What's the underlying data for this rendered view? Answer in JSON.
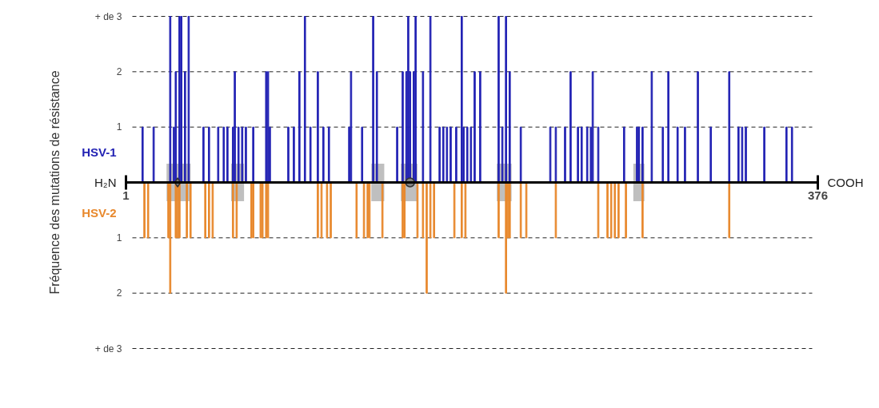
{
  "chart_data": {
    "type": "bar",
    "ylabel": "Fréquence des mutations de résistance",
    "annotations": [
      "H₂N",
      "COOH"
    ],
    "xlim": [
      1,
      376
    ],
    "xticks": [
      1,
      376
    ],
    "ylim": [
      -3,
      3
    ],
    "yticks": [
      {
        "value": 3,
        "label": "+ de 3"
      },
      {
        "value": 2,
        "label": "2"
      },
      {
        "value": 1,
        "label": "1"
      },
      {
        "value": -1,
        "label": "1"
      },
      {
        "value": -2,
        "label": "2"
      },
      {
        "value": -3,
        "label": "+ de 3"
      }
    ],
    "grid": "y",
    "line_style": "dashed",
    "bands": [
      {
        "axis": "x",
        "from": 23,
        "to": 36,
        "color": "#bfbfbf"
      },
      {
        "axis": "x",
        "from": 58,
        "to": 65,
        "color": "#bfbfbf"
      },
      {
        "axis": "x",
        "from": 134,
        "to": 141,
        "color": "#bfbfbf"
      },
      {
        "axis": "x",
        "from": 150,
        "to": 159,
        "color": "#bfbfbf"
      },
      {
        "axis": "x",
        "from": 202,
        "to": 210,
        "color": "#bfbfbf"
      },
      {
        "axis": "x",
        "from": 276,
        "to": 282,
        "color": "#bfbfbf"
      }
    ],
    "series": [
      {
        "name": "HSV-1",
        "color": "#2323b4",
        "x": [
          10,
          16,
          25,
          27,
          28,
          30,
          31,
          33,
          35,
          43,
          46,
          51,
          54,
          56,
          59,
          60,
          62,
          64,
          66,
          70,
          77,
          78,
          79,
          89,
          92,
          95,
          98,
          101,
          105,
          108,
          111,
          122,
          123,
          129,
          135,
          137,
          148,
          151,
          153,
          154,
          155,
          157,
          158,
          162,
          166,
          171,
          173,
          175,
          177,
          180,
          183,
          184,
          186,
          188,
          190,
          193,
          203,
          205,
          207,
          209,
          215,
          231,
          234,
          239,
          242,
          246,
          248,
          251,
          253,
          254,
          257,
          271,
          278,
          279,
          281,
          286,
          292,
          295,
          300,
          304,
          311,
          318,
          328,
          333,
          335,
          337,
          347,
          359,
          362
        ],
        "values": [
          1,
          1,
          3,
          1,
          2,
          3,
          3,
          2,
          3,
          1,
          1,
          1,
          1,
          1,
          1,
          2,
          1,
          1,
          1,
          1,
          2,
          2,
          1,
          1,
          1,
          2,
          3,
          1,
          2,
          1,
          1,
          1,
          2,
          1,
          3,
          2,
          1,
          2,
          2,
          3,
          2,
          2,
          3,
          2,
          3,
          1,
          1,
          1,
          1,
          1,
          3,
          1,
          1,
          1,
          2,
          2,
          3,
          1,
          3,
          2,
          1,
          1,
          1,
          1,
          2,
          1,
          1,
          1,
          1,
          2,
          1,
          1,
          1,
          1,
          1,
          2,
          1,
          2,
          1,
          1,
          2,
          1,
          2,
          1,
          1,
          1,
          1,
          1,
          1
        ]
      },
      {
        "name": "HSV-2",
        "color": "#e8892e",
        "x": [
          11,
          13,
          24,
          25,
          28,
          29,
          30,
          34,
          36,
          44,
          46,
          48,
          59,
          61,
          69,
          70,
          74,
          75,
          77,
          78,
          105,
          107,
          110,
          112,
          126,
          130,
          132,
          133,
          140,
          151,
          152,
          159,
          162,
          164,
          166,
          168,
          179,
          183,
          185,
          203,
          207,
          208,
          209,
          215,
          218,
          234,
          257,
          262,
          264,
          266,
          268,
          272,
          281,
          328
        ],
        "values": [
          -1,
          -1,
          -1,
          -2,
          -1,
          -1,
          -1,
          -1,
          -1,
          -1,
          -1,
          -1,
          -1,
          -1,
          -1,
          -1,
          -1,
          -1,
          -1,
          -1,
          -1,
          -1,
          -1,
          -1,
          -1,
          -1,
          -1,
          -1,
          -1,
          -1,
          -1,
          -1,
          -1,
          -2,
          -1,
          -1,
          -1,
          -1,
          -1,
          -1,
          -2,
          -1,
          -1,
          -1,
          -1,
          -1,
          -1,
          -1,
          -1,
          -1,
          -1,
          -1,
          -1,
          -1
        ]
      },
      {
        "type": "scatter",
        "marker": "diamond",
        "color": "#808080",
        "x": [
          29
        ],
        "values": [
          0
        ]
      },
      {
        "type": "scatter",
        "marker": "circle",
        "color": "#808080",
        "x": [
          155
        ],
        "values": [
          0
        ]
      }
    ]
  }
}
